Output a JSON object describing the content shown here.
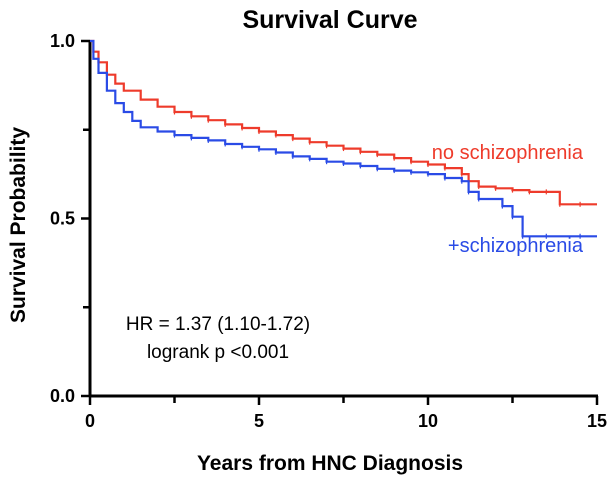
{
  "chart_data": {
    "type": "line",
    "title": "Survival Curve",
    "xlabel": "Years from HNC Diagnosis",
    "ylabel": "Survival Probability",
    "xlim": [
      0,
      15
    ],
    "ylim": [
      0,
      1
    ],
    "x_ticks": [
      0,
      5,
      10,
      15
    ],
    "x_tick_labels": [
      "0",
      "5",
      "10",
      "15"
    ],
    "y_ticks": [
      0,
      0.5,
      1
    ],
    "y_tick_labels": [
      "0.0",
      "0.5",
      "1.0"
    ],
    "grid": false,
    "legend": "direct labels at right of curves",
    "annotations": [
      "HR = 1.37 (1.10-1.72)",
      "logrank p <0.001"
    ],
    "series": [
      {
        "name": "no schizophrenia",
        "color": "#ee3b2b",
        "step": true,
        "x": [
          0,
          0.1,
          0.25,
          0.5,
          0.75,
          1,
          1.5,
          2,
          2.5,
          3,
          3.5,
          4,
          4.5,
          5,
          5.5,
          6,
          6.5,
          7,
          7.5,
          8,
          8.5,
          9,
          9.5,
          10,
          10.5,
          11,
          11.2,
          11.5,
          12,
          12.5,
          13,
          13.5,
          13.9,
          14.5,
          15
        ],
        "y": [
          1.0,
          0.97,
          0.94,
          0.905,
          0.88,
          0.86,
          0.835,
          0.815,
          0.8,
          0.788,
          0.777,
          0.765,
          0.755,
          0.745,
          0.735,
          0.725,
          0.715,
          0.705,
          0.697,
          0.688,
          0.68,
          0.67,
          0.66,
          0.652,
          0.642,
          0.625,
          0.605,
          0.59,
          0.585,
          0.58,
          0.575,
          0.575,
          0.54,
          0.54,
          0.54
        ]
      },
      {
        "name": "+schizophrenia",
        "color": "#2a4be6",
        "step": true,
        "x": [
          0,
          0.1,
          0.25,
          0.5,
          0.75,
          1,
          1.25,
          1.5,
          2,
          2.5,
          3,
          3.5,
          4,
          4.5,
          5,
          5.5,
          6,
          6.5,
          7,
          7.5,
          8,
          8.5,
          9,
          9.5,
          10,
          10.5,
          11,
          11.2,
          11.5,
          12.2,
          12.5,
          12.8,
          13.5,
          14.5,
          15
        ],
        "y": [
          1.0,
          0.95,
          0.91,
          0.86,
          0.825,
          0.8,
          0.775,
          0.757,
          0.745,
          0.735,
          0.727,
          0.72,
          0.71,
          0.702,
          0.695,
          0.686,
          0.675,
          0.668,
          0.66,
          0.655,
          0.648,
          0.64,
          0.635,
          0.63,
          0.625,
          0.614,
          0.605,
          0.575,
          0.555,
          0.535,
          0.505,
          0.45,
          0.45,
          0.45,
          0.45
        ]
      }
    ]
  }
}
